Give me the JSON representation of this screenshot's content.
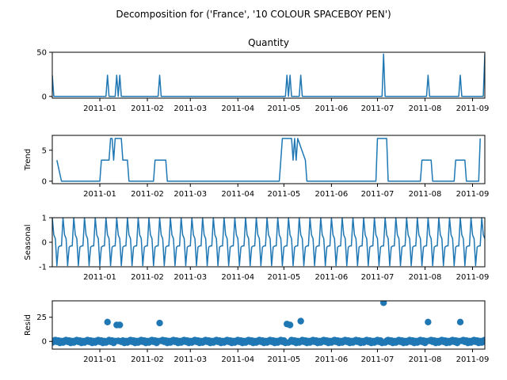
{
  "title": "Decomposition for ('France', '10 COLOUR SPACEBOY PEN')",
  "x_ticks": [
    "2011-01",
    "2011-02",
    "2011-03",
    "2011-04",
    "2011-05",
    "2011-06",
    "2011-07",
    "2011-08",
    "2011-09"
  ],
  "line_color": "#1f77b4",
  "chart_data": [
    {
      "type": "line",
      "title": "Quantity",
      "ylabel": "",
      "ylim": [
        -2,
        50
      ],
      "yticks": [
        0,
        50
      ],
      "xlim": [
        "2010-12-01",
        "2011-09-09"
      ],
      "series": [
        {
          "x": [
            "2010-12-01",
            "2010-12-02",
            "2011-01-05",
            "2011-01-06",
            "2011-01-07",
            "2011-01-11",
            "2011-01-12",
            "2011-01-13",
            "2011-01-14",
            "2011-01-15",
            "2011-01-16",
            "2011-02-08",
            "2011-02-09",
            "2011-02-10",
            "2011-05-02",
            "2011-05-03",
            "2011-05-04",
            "2011-05-05",
            "2011-05-06",
            "2011-05-11",
            "2011-05-12",
            "2011-05-13",
            "2011-07-04",
            "2011-07-05",
            "2011-07-06",
            "2011-08-02",
            "2011-08-03",
            "2011-08-04",
            "2011-08-23",
            "2011-08-24",
            "2011-08-25",
            "2011-09-08",
            "2011-09-09"
          ],
          "values": [
            24,
            0,
            0,
            24,
            0,
            0,
            24,
            0,
            24,
            0,
            0,
            0,
            24,
            0,
            0,
            24,
            0,
            24,
            0,
            0,
            24,
            0,
            0,
            48,
            0,
            0,
            24,
            0,
            0,
            24,
            0,
            0,
            48
          ]
        }
      ]
    },
    {
      "type": "line",
      "title": "",
      "ylabel": "Trend",
      "ylim": [
        -0.4,
        7.4
      ],
      "yticks": [
        0,
        5
      ],
      "xlim": [
        "2010-12-01",
        "2011-09-09"
      ],
      "series": [
        {
          "x": [
            "2010-12-04",
            "2010-12-07",
            "2011-01-01",
            "2011-01-02",
            "2011-01-07",
            "2011-01-08",
            "2011-01-09",
            "2011-01-10",
            "2011-01-11",
            "2011-01-15",
            "2011-01-16",
            "2011-01-19",
            "2011-01-20",
            "2011-02-05",
            "2011-02-06",
            "2011-02-13",
            "2011-02-14",
            "2011-04-28",
            "2011-04-29",
            "2011-04-30",
            "2011-05-06",
            "2011-05-07",
            "2011-05-08",
            "2011-05-09",
            "2011-05-10",
            "2011-05-15",
            "2011-05-16",
            "2011-06-30",
            "2011-07-01",
            "2011-07-07",
            "2011-07-08",
            "2011-07-29",
            "2011-07-30",
            "2011-08-05",
            "2011-08-06",
            "2011-08-20",
            "2011-08-21",
            "2011-08-27",
            "2011-08-28",
            "2011-09-05",
            "2011-09-06"
          ],
          "values": [
            3.4,
            0,
            0,
            3.4,
            3.4,
            6.9,
            6.9,
            3.4,
            6.9,
            6.9,
            3.4,
            3.4,
            0,
            0,
            3.4,
            3.4,
            0,
            0,
            3.4,
            6.9,
            6.9,
            3.4,
            6.9,
            3.4,
            6.9,
            3.4,
            0,
            0,
            6.9,
            6.9,
            0,
            0,
            3.4,
            3.4,
            0,
            0,
            3.4,
            3.4,
            0,
            0,
            6.9
          ]
        }
      ]
    },
    {
      "type": "line",
      "title": "",
      "ylabel": "Seasonal",
      "ylim": [
        -1,
        1
      ],
      "yticks": [
        -1,
        0,
        1
      ],
      "xlim": [
        "2010-12-01",
        "2011-09-09"
      ],
      "period_days": 7,
      "series": [
        {
          "pattern": [
            1.0,
            0.3,
            0.15,
            -0.95,
            -0.2,
            -0.15,
            -0.15
          ],
          "start": "2010-12-01",
          "end": "2011-09-09"
        }
      ]
    },
    {
      "type": "scatter",
      "title": "",
      "ylabel": "Resid",
      "ylim": [
        -8,
        42
      ],
      "yticks": [
        0,
        25
      ],
      "xlim": [
        "2010-12-01",
        "2011-09-09"
      ],
      "baseline": 0,
      "outliers": [
        {
          "x": "2011-01-06",
          "y": 20
        },
        {
          "x": "2011-01-12",
          "y": 17
        },
        {
          "x": "2011-01-14",
          "y": 17
        },
        {
          "x": "2011-02-09",
          "y": 19
        },
        {
          "x": "2011-05-03",
          "y": 18
        },
        {
          "x": "2011-05-05",
          "y": 17
        },
        {
          "x": "2011-05-12",
          "y": 21
        },
        {
          "x": "2011-07-05",
          "y": 40
        },
        {
          "x": "2011-08-03",
          "y": 20
        },
        {
          "x": "2011-08-24",
          "y": 20
        }
      ]
    }
  ]
}
